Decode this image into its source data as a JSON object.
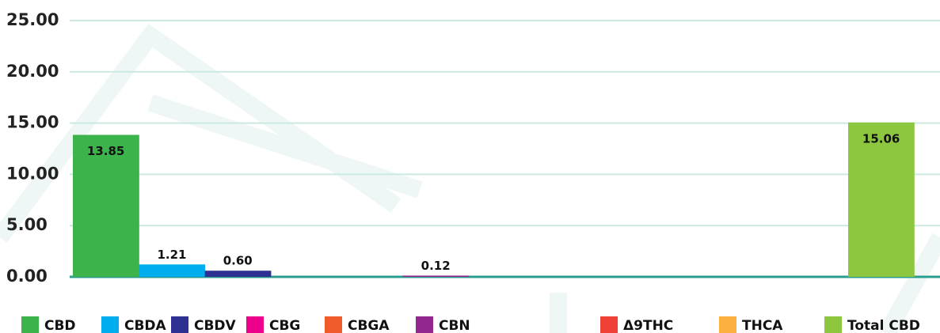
{
  "chart_data": {
    "type": "bar",
    "categories": [
      "CBD",
      "CBDA",
      "CBDV",
      "CBG",
      "CBGA",
      "CBN",
      "Δ9THC",
      "THCA",
      "Total CBD"
    ],
    "values": [
      13.85,
      1.21,
      0.6,
      null,
      null,
      0.12,
      null,
      null,
      15.06
    ],
    "value_labels": [
      "13.85",
      "1.21",
      "0.60",
      null,
      null,
      "0.12",
      null,
      null,
      "15.06"
    ],
    "colors": [
      "#3cb44b",
      "#00aeef",
      "#2e3192",
      "#ec008c",
      "#f15a29",
      "#92278f",
      "#ef4136",
      "#fbb040",
      "#8dc63f"
    ],
    "ylim": [
      0,
      25
    ],
    "yticks": [
      {
        "value": 0,
        "label": "0.00"
      },
      {
        "value": 5,
        "label": "5.00"
      },
      {
        "value": 10,
        "label": "10.00"
      },
      {
        "value": 15,
        "label": "15.00"
      },
      {
        "value": 20,
        "label": "20.00"
      },
      {
        "value": 25,
        "label": "25.00"
      }
    ],
    "grid": true
  }
}
